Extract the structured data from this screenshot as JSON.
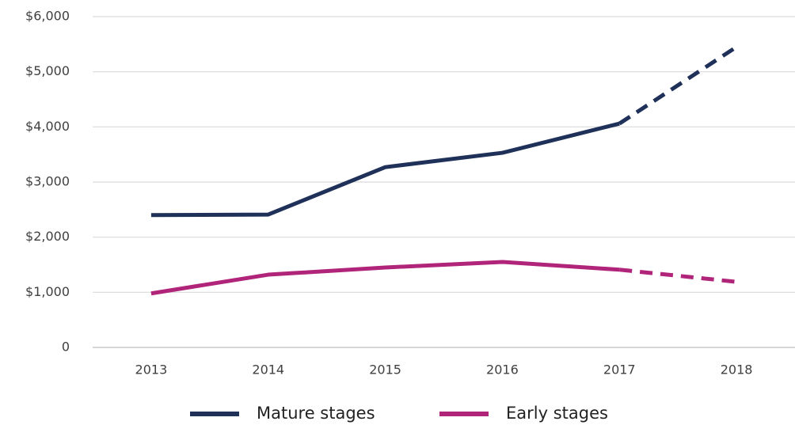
{
  "chart_data": {
    "type": "line",
    "categories": [
      "2013",
      "2014",
      "2015",
      "2016",
      "2017",
      "2018"
    ],
    "series": [
      {
        "name": "Mature stages",
        "color": "#1f3159",
        "values": [
          2400,
          2410,
          3270,
          3530,
          4060,
          5450
        ],
        "dashed_from": "2017"
      },
      {
        "name": "Early stages",
        "color": "#b0247a",
        "values": [
          980,
          1320,
          1450,
          1550,
          1410,
          1190
        ],
        "dashed_from": "2017"
      }
    ],
    "ylim": [
      0,
      6000
    ],
    "yticks": [
      0,
      {
        "value": 1000,
        "label": "$1,000"
      },
      {
        "value": 2000,
        "label": "$2,000"
      },
      {
        "value": 3000,
        "label": "$3,000"
      },
      {
        "value": 4000,
        "label": "$4,000"
      },
      {
        "value": 5000,
        "label": "$5,000"
      },
      {
        "value": 6000,
        "label": "$6,000"
      }
    ],
    "grid": true,
    "legend": "bottom"
  }
}
